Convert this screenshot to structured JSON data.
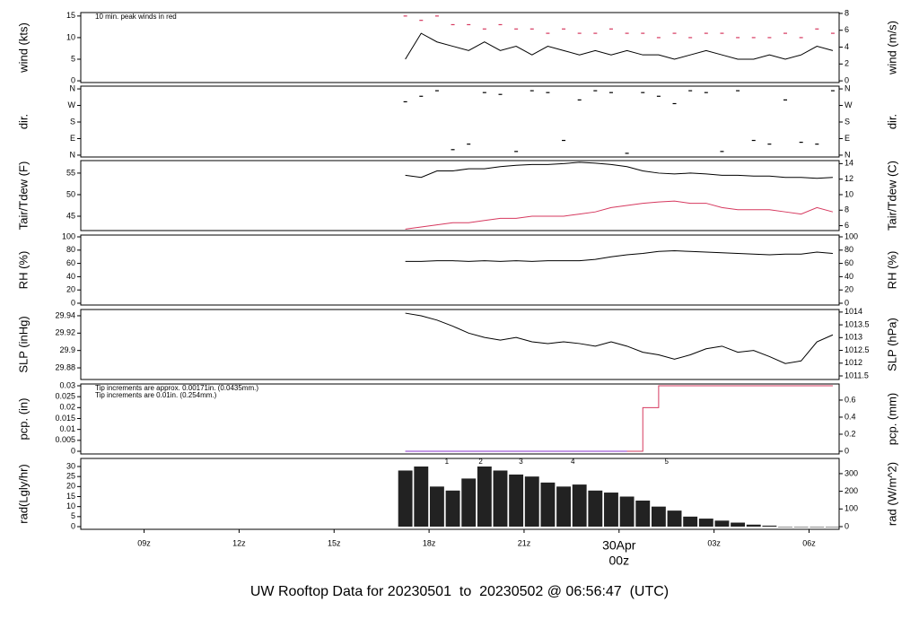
{
  "chart_data": [
    {
      "type": "line",
      "ylabel": "wind (kts)",
      "y2label": "wind (m/s)",
      "xlim": [
        7,
        30.95
      ],
      "ylim": [
        -0.4,
        15.8
      ],
      "yticks": [
        0,
        5,
        10,
        15
      ],
      "y2lim": [
        -0.2,
        8.1
      ],
      "y2ticks": [
        0,
        2,
        4,
        6,
        8
      ],
      "annotations": [
        {
          "text": "10 min. peak winds in red",
          "color": "#d6395f"
        }
      ],
      "x": [
        17.25,
        17.75,
        18.25,
        18.75,
        19.25,
        19.75,
        20.25,
        20.75,
        21.25,
        21.75,
        22.25,
        22.75,
        23.25,
        23.75,
        24.25,
        24.75,
        25.25,
        25.75,
        26.25,
        26.75,
        27.25,
        27.75,
        28.25,
        28.75,
        29.25,
        29.75,
        30.25,
        30.75
      ],
      "series": [
        {
          "name": "wind",
          "mark": "line",
          "color": "#000000",
          "values": [
            5,
            11,
            9,
            8,
            7,
            9,
            7,
            8,
            6,
            8,
            7,
            6,
            7,
            6,
            7,
            6,
            6,
            5,
            6,
            7,
            6,
            5,
            5,
            6,
            5,
            6,
            8,
            7
          ]
        },
        {
          "name": "peak",
          "mark": "dash",
          "color": "#d6395f",
          "values": [
            15,
            14,
            15,
            13,
            13,
            12,
            13,
            12,
            12,
            11,
            12,
            11,
            11,
            12,
            11,
            11,
            10,
            11,
            10,
            11,
            11,
            10,
            10,
            10,
            11,
            10,
            12,
            11
          ]
        }
      ]
    },
    {
      "type": "scatter",
      "ylabel": "dir.",
      "y2label": "dir.",
      "xlim": [
        7,
        30.95
      ],
      "ylim": [
        -10,
        375
      ],
      "yticks": [
        {
          "value": 0,
          "label": "N"
        },
        {
          "value": 90,
          "label": "E"
        },
        {
          "value": 180,
          "label": "S"
        },
        {
          "value": 270,
          "label": "W"
        },
        {
          "value": 360,
          "label": "N"
        }
      ],
      "x": [
        17.25,
        17.75,
        18.25,
        18.75,
        19.25,
        19.75,
        20.25,
        20.75,
        21.25,
        21.75,
        22.25,
        22.75,
        23.25,
        23.75,
        24.25,
        24.75,
        25.25,
        25.75,
        26.25,
        26.75,
        27.25,
        27.75,
        28.25,
        28.75,
        29.25,
        29.75,
        30.25,
        30.75
      ],
      "series": [
        {
          "name": "dir",
          "mark": "dash",
          "color": "#000000",
          "values": [
            290,
            320,
            350,
            30,
            60,
            340,
            330,
            20,
            350,
            340,
            80,
            300,
            350,
            340,
            10,
            340,
            320,
            280,
            350,
            340,
            20,
            350,
            80,
            60,
            300,
            70,
            60,
            350
          ]
        }
      ]
    },
    {
      "type": "line",
      "ylabel": "Tair/Tdew (F)",
      "y2label": "Tair/Tdew (C)",
      "xlim": [
        7,
        30.95
      ],
      "ylim": [
        41.67,
        57.9
      ],
      "yticks": [
        45,
        50,
        55
      ],
      "y2lim": [
        5.37,
        14.39
      ],
      "y2ticks": [
        6,
        8,
        10,
        12,
        14
      ],
      "x": [
        17.25,
        17.75,
        18.25,
        18.75,
        19.25,
        19.75,
        20.25,
        20.75,
        21.25,
        21.75,
        22.25,
        22.75,
        23.25,
        23.75,
        24.25,
        24.75,
        25.25,
        25.75,
        26.25,
        26.75,
        27.25,
        27.75,
        28.25,
        28.75,
        29.25,
        29.75,
        30.25,
        30.75
      ],
      "series": [
        {
          "name": "Tair",
          "mark": "line",
          "color": "#000000",
          "values": [
            54.5,
            54,
            55.5,
            55.5,
            56,
            56,
            56.5,
            56.8,
            57,
            57,
            57.2,
            57.5,
            57.3,
            57,
            56.5,
            55.5,
            55,
            54.8,
            55,
            54.8,
            54.5,
            54.5,
            54.3,
            54.3,
            54,
            54,
            53.8,
            54
          ]
        },
        {
          "name": "Tdew",
          "mark": "line",
          "color": "#d6395f",
          "values": [
            42,
            42.5,
            43,
            43.5,
            43.5,
            44,
            44.5,
            44.5,
            45,
            45,
            45,
            45.5,
            46,
            47,
            47.5,
            48,
            48.3,
            48.5,
            48,
            48,
            47,
            46.5,
            46.5,
            46.5,
            46,
            45.5,
            47,
            46
          ]
        }
      ]
    },
    {
      "type": "line",
      "ylabel": "RH (%)",
      "y2label": "RH (%)",
      "xlim": [
        7,
        30.95
      ],
      "ylim": [
        -2.7,
        102.7
      ],
      "yticks": [
        0,
        20,
        40,
        60,
        80,
        100
      ],
      "x": [
        17.25,
        17.75,
        18.25,
        18.75,
        19.25,
        19.75,
        20.25,
        20.75,
        21.25,
        21.75,
        22.25,
        22.75,
        23.25,
        23.75,
        24.25,
        24.75,
        25.25,
        25.75,
        26.25,
        26.75,
        27.25,
        27.75,
        28.25,
        28.75,
        29.25,
        29.75,
        30.25,
        30.75
      ],
      "series": [
        {
          "name": "RH",
          "mark": "line",
          "color": "#000000",
          "values": [
            63,
            63,
            64,
            64,
            63,
            64,
            63,
            64,
            63,
            64,
            64,
            64,
            66,
            70,
            73,
            75,
            78,
            79,
            78,
            77,
            76,
            75,
            74,
            73,
            74,
            74,
            77,
            75
          ]
        }
      ]
    },
    {
      "type": "line",
      "ylabel": "SLP (inHg)",
      "y2label": "SLP (hPa)",
      "xlim": [
        7,
        30.95
      ],
      "ylim": [
        29.8666,
        29.9472
      ],
      "yticks": [
        29.88,
        29.9,
        29.92,
        29.94
      ],
      "y2lim": [
        1011.36,
        1014.1
      ],
      "y2ticks": [
        1011.5,
        1012,
        1012.5,
        1013,
        1013.5,
        1014
      ],
      "x": [
        17.25,
        17.75,
        18.25,
        18.75,
        19.25,
        19.75,
        20.25,
        20.75,
        21.25,
        21.75,
        22.25,
        22.75,
        23.25,
        23.75,
        24.25,
        24.75,
        25.25,
        25.75,
        26.25,
        26.75,
        27.25,
        27.75,
        28.25,
        28.75,
        29.25,
        29.75,
        30.25,
        30.75
      ],
      "series": [
        {
          "name": "SLP",
          "mark": "line",
          "color": "#000000",
          "values": [
            29.943,
            29.94,
            29.935,
            29.928,
            29.92,
            29.915,
            29.912,
            29.915,
            29.91,
            29.908,
            29.91,
            29.908,
            29.905,
            29.91,
            29.905,
            29.898,
            29.895,
            29.89,
            29.895,
            29.902,
            29.905,
            29.898,
            29.9,
            29.893,
            29.885,
            29.888,
            29.91,
            29.918
          ]
        }
      ]
    },
    {
      "type": "line",
      "ylabel": "pcp. (in)",
      "y2label": "pcp. (mm)",
      "xlim": [
        7,
        30.95
      ],
      "ylim": [
        -0.00123,
        0.03082
      ],
      "yticks": [
        0,
        0.005,
        0.01,
        0.015,
        0.02,
        0.025,
        0.03
      ],
      "y2lim": [
        -0.0316,
        0.789
      ],
      "y2ticks": [
        0,
        0.2,
        0.4,
        0.6
      ],
      "annotations": [
        {
          "text": "Tip increments are approx. 0.00171in. (0.0435mm.)",
          "color": "#d6395f"
        },
        {
          "text": "Tip increments are 0.01in. (0.254mm.)",
          "color": "#3399dd"
        }
      ],
      "x": [
        17.25,
        17.75,
        18.25,
        18.75,
        19.25,
        19.75,
        20.25,
        20.75,
        21.25,
        21.75,
        22.25,
        22.75,
        23.25,
        23.75,
        24.25,
        24.75,
        25.25,
        25.75,
        26.25,
        26.75,
        27.25,
        27.75,
        28.25,
        28.75,
        29.25,
        29.75,
        30.25,
        30.75
      ],
      "series": [
        {
          "name": "pcp-approx",
          "mark": "step",
          "color": "#d6395f",
          "values": [
            0,
            0,
            0,
            0,
            0,
            0,
            0,
            0,
            0,
            0,
            0,
            0,
            0,
            0,
            0,
            0.02,
            0.03,
            0.03,
            0.03,
            0.03,
            0.03,
            0.03,
            0.03,
            0.03,
            0.03,
            0.03,
            0.03,
            0.03
          ]
        },
        {
          "name": "pcp-tip",
          "mark": "step",
          "color": "#8833cc",
          "values": [
            0,
            0,
            0,
            0,
            0,
            0,
            0,
            0,
            0,
            0,
            0,
            0,
            0,
            0,
            0,
            null,
            null,
            null,
            null,
            null,
            null,
            null,
            null,
            null,
            null,
            null,
            null,
            null
          ]
        }
      ]
    },
    {
      "type": "bar",
      "ylabel": "rad(Lgly/hr)",
      "y2label": "rad (W/m^2)",
      "xlim": [
        7,
        30.95
      ],
      "ylim": [
        -1.34,
        34.03
      ],
      "yticks": [
        0,
        5,
        10,
        15,
        20,
        25,
        30
      ],
      "y2lim": [
        -15.3,
        386
      ],
      "y2ticks": [
        0,
        100,
        200,
        300
      ],
      "xticks": [
        {
          "value": 9,
          "label": "09z"
        },
        {
          "value": 12,
          "label": "12z"
        },
        {
          "value": 15,
          "label": "15z"
        },
        {
          "value": 18,
          "label": "18z"
        },
        {
          "value": 21,
          "label": "21z"
        },
        {
          "value": 24,
          "label": "00z"
        },
        {
          "value": 27,
          "label": "03z"
        },
        {
          "value": 30,
          "label": "06z"
        }
      ],
      "date_label": {
        "text": "30Apr",
        "x": 24
      },
      "markers": [
        {
          "label": "1",
          "x": 18.56
        },
        {
          "label": "2",
          "x": 19.63
        },
        {
          "label": "3",
          "x": 20.9
        },
        {
          "label": "4",
          "x": 22.54
        },
        {
          "label": "5",
          "x": 25.5
        }
      ],
      "title": "UW Rooftop Data for 20230501  to  20230502 @ 06:56:47  (UTC)",
      "x": [
        17.25,
        17.75,
        18.25,
        18.75,
        19.25,
        19.75,
        20.25,
        20.75,
        21.25,
        21.75,
        22.25,
        22.75,
        23.25,
        23.75,
        24.25,
        24.75,
        25.25,
        25.75,
        26.25,
        26.75,
        27.25,
        27.75,
        28.25,
        28.75,
        29.25,
        29.75,
        30.25,
        30.75
      ],
      "series": [
        {
          "name": "rad",
          "mark": "bar",
          "color": "#222222",
          "values": [
            28,
            30,
            20,
            18,
            24,
            30,
            28,
            26,
            25,
            22,
            20,
            21,
            18,
            17,
            15,
            13,
            10,
            8,
            5,
            4,
            3,
            2,
            1,
            0.5,
            0,
            0,
            0,
            0
          ]
        }
      ]
    }
  ]
}
